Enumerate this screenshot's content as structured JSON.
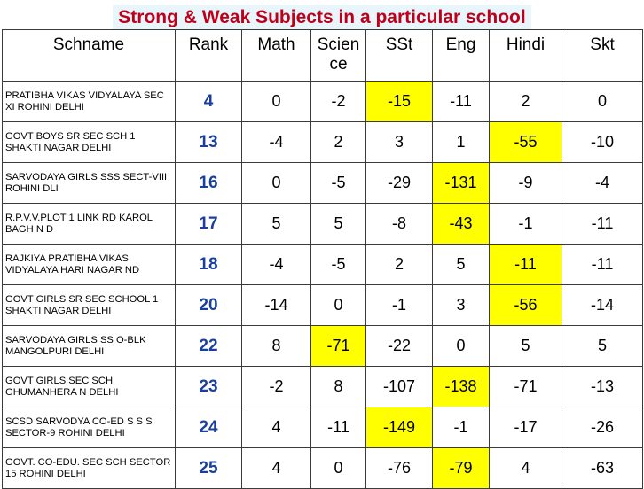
{
  "title": "Strong & Weak Subjects  in a particular school",
  "columns": [
    "Schname",
    "Rank",
    "Math",
    "Scien ce",
    "SSt",
    "Eng",
    "Hindi",
    "Skt"
  ],
  "rows": [
    {
      "name": "PRATIBHA VIKAS VIDYALAYA SEC XI ROHINI DELHI",
      "rank": "4",
      "scores": [
        "0",
        "-2",
        "-15",
        "-11",
        "2",
        "0"
      ],
      "highlight": [
        2
      ]
    },
    {
      "name": "GOVT BOYS SR SEC SCH 1 SHAKTI NAGAR DELHI",
      "rank": "13",
      "scores": [
        "-4",
        "2",
        "3",
        "1",
        "-55",
        "-10"
      ],
      "highlight": [
        4
      ]
    },
    {
      "name": "SARVODAYA GIRLS SSS SECT-VIII ROHINI DLI",
      "rank": "16",
      "scores": [
        "0",
        "-5",
        "-29",
        "-131",
        "-9",
        "-4"
      ],
      "highlight": [
        3
      ]
    },
    {
      "name": "R.P.V.V.PLOT 1 LINK RD KAROL BAGH N D",
      "rank": "17",
      "scores": [
        "5",
        "5",
        "-8",
        "-43",
        "-1",
        "-11"
      ],
      "highlight": [
        3
      ]
    },
    {
      "name": "RAJKIYA PRATIBHA VIKAS VIDYALAYA HARI NAGAR ND",
      "rank": "18",
      "scores": [
        "-4",
        "-5",
        "2",
        "5",
        "-11",
        "-11"
      ],
      "highlight": [
        4
      ]
    },
    {
      "name": "GOVT GIRLS SR SEC SCHOOL 1 SHAKTI NAGAR DELHI",
      "rank": "20",
      "scores": [
        "-14",
        "0",
        "-1",
        "3",
        "-56",
        "-14"
      ],
      "highlight": [
        4
      ]
    },
    {
      "name": "SARVODAYA GIRLS SS O-BLK MANGOLPURI DELHI",
      "rank": "22",
      "scores": [
        "8",
        "-71",
        "-22",
        "0",
        "5",
        "5"
      ],
      "highlight": [
        1
      ]
    },
    {
      "name": "GOVT GIRLS SEC SCH GHUMANHERA N DELHI",
      "rank": "23",
      "scores": [
        "-2",
        "8",
        "-107",
        "-138",
        "-71",
        "-13"
      ],
      "highlight": [
        3
      ]
    },
    {
      "name": "SCSD SARVODYA CO-ED S S S SECTOR-9 ROHINI DELHI",
      "rank": "24",
      "scores": [
        "4",
        "-11",
        "-149",
        "-1",
        "-17",
        "-26"
      ],
      "highlight": [
        2
      ]
    },
    {
      "name": "GOVT. CO-EDU. SEC SCH SECTOR 15 ROHINI DELHI",
      "rank": "25",
      "scores": [
        "4",
        "0",
        "-76",
        "-79",
        "4",
        "-63"
      ],
      "highlight": [
        3
      ]
    }
  ],
  "colors": {
    "title_text": "#c0001a",
    "title_bg": "#e8f6fb",
    "rank_text": "#1a3f9e",
    "highlight": "#ffff00"
  }
}
